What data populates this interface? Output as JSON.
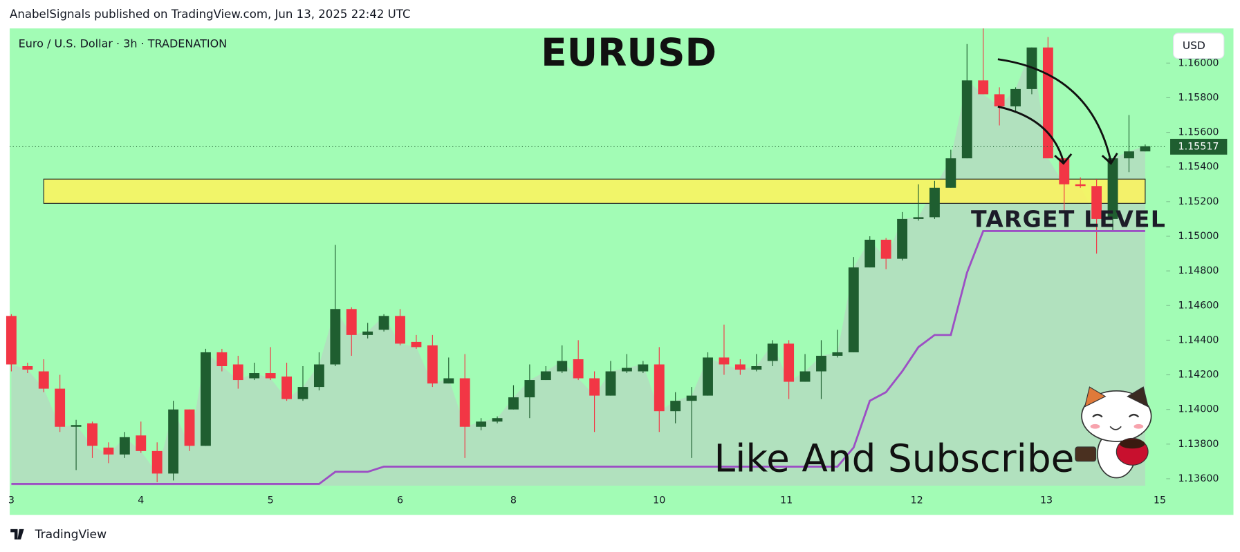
{
  "header": {
    "published": "AnabelSignals published on TradingView.com, Jun 13, 2025 22:42 UTC",
    "brand": "TradingView"
  },
  "chart_data": {
    "type": "candlestick",
    "symbol": "Euro / U.S. Dollar · 3h · TRADENATION",
    "title": "EURUSD",
    "currency": "USD",
    "annotations": [
      "TARGET LEVEL",
      "Like And Subscribe"
    ],
    "up_color": "#1f5e30",
    "down_color": "#f23645",
    "area_color": "#b4dcc0",
    "open": [
      1.1454,
      1.1425,
      1.1422,
      1.1412,
      1.139,
      1.1392,
      1.1378,
      1.1374,
      1.1385,
      1.1376,
      1.1363,
      1.14,
      1.1379,
      1.1433,
      1.1426,
      1.1418,
      1.1421,
      1.1419,
      1.1406,
      1.1413,
      1.1426,
      1.1458,
      1.1443,
      1.1446,
      1.1454,
      1.1439,
      1.1437,
      1.1415,
      1.1418,
      1.139,
      1.1393,
      1.14,
      1.1407,
      1.1417,
      1.1422,
      1.1429,
      1.1418,
      1.1408,
      1.1422,
      1.1422,
      1.1426,
      1.1399,
      1.1405,
      1.1408,
      1.143,
      1.1426,
      1.1423,
      1.1428,
      1.1438,
      1.1416,
      1.1422,
      1.1431,
      1.1433,
      1.1482,
      1.1498,
      1.1487,
      1.151,
      1.1511,
      1.1528,
      1.1545,
      1.159,
      1.1582,
      1.1575,
      1.1585,
      1.1609,
      1.1545,
      1.153,
      1.1529,
      1.151,
      1.1545,
      1.1549
    ],
    "high": [
      1.1455,
      1.1427,
      1.1429,
      1.142,
      1.1394,
      1.1393,
      1.1381,
      1.1387,
      1.1393,
      1.1381,
      1.1405,
      1.14,
      1.1435,
      1.1435,
      1.1431,
      1.1427,
      1.1436,
      1.1427,
      1.1425,
      1.1433,
      1.1495,
      1.1459,
      1.145,
      1.1455,
      1.1458,
      1.1443,
      1.1443,
      1.143,
      1.1432,
      1.1395,
      1.1396,
      1.1414,
      1.1426,
      1.1425,
      1.1437,
      1.144,
      1.1422,
      1.1428,
      1.1432,
      1.1428,
      1.1436,
      1.141,
      1.1413,
      1.1433,
      1.1449,
      1.1429,
      1.1432,
      1.144,
      1.144,
      1.1432,
      1.144,
      1.1446,
      1.1488,
      1.15,
      1.1499,
      1.1514,
      1.153,
      1.1532,
      1.155,
      1.1611,
      1.162,
      1.1586,
      1.1586,
      1.1609,
      1.1615,
      1.1545,
      1.1534,
      1.1533,
      1.1545,
      1.157,
      1.1553
    ],
    "low": [
      1.1422,
      1.1421,
      1.141,
      1.1387,
      1.1365,
      1.1372,
      1.1369,
      1.1372,
      1.1375,
      1.1358,
      1.1359,
      1.1376,
      1.1379,
      1.1422,
      1.1412,
      1.1417,
      1.1417,
      1.1405,
      1.1405,
      1.1411,
      1.1425,
      1.1431,
      1.1441,
      1.1445,
      1.1437,
      1.1435,
      1.1413,
      1.1415,
      1.1372,
      1.1388,
      1.1392,
      1.14,
      1.1395,
      1.1417,
      1.1421,
      1.1417,
      1.1387,
      1.1408,
      1.1421,
      1.1421,
      1.1387,
      1.1392,
      1.1372,
      1.1408,
      1.142,
      1.142,
      1.1422,
      1.1425,
      1.1406,
      1.1416,
      1.1406,
      1.143,
      1.1433,
      1.1482,
      1.1481,
      1.1486,
      1.1509,
      1.151,
      1.1528,
      1.1545,
      1.1582,
      1.1564,
      1.1572,
      1.1582,
      1.1545,
      1.1515,
      1.1528,
      1.149,
      1.1503,
      1.1537,
      1.1549
    ],
    "close": [
      1.1426,
      1.1423,
      1.1412,
      1.139,
      1.1391,
      1.1379,
      1.1374,
      1.1384,
      1.1376,
      1.1363,
      1.14,
      1.1379,
      1.1433,
      1.1425,
      1.1417,
      1.1421,
      1.1418,
      1.1406,
      1.1413,
      1.1426,
      1.1458,
      1.1443,
      1.1445,
      1.1454,
      1.1438,
      1.1436,
      1.1415,
      1.1418,
      1.139,
      1.1393,
      1.1395,
      1.1407,
      1.1417,
      1.1422,
      1.1428,
      1.1418,
      1.1408,
      1.1422,
      1.1424,
      1.1426,
      1.1399,
      1.1405,
      1.1408,
      1.143,
      1.1426,
      1.1423,
      1.1425,
      1.1438,
      1.1416,
      1.1422,
      1.1431,
      1.1433,
      1.1482,
      1.1498,
      1.1487,
      1.151,
      1.1511,
      1.1528,
      1.1545,
      1.159,
      1.1582,
      1.1575,
      1.1585,
      1.1609,
      1.1545,
      1.153,
      1.1529,
      1.151,
      1.1545,
      1.1549,
      1.1552
    ],
    "line": {
      "color": "#9c4fc4",
      "values": [
        1.1357,
        1.1357,
        1.1357,
        1.1357,
        1.1357,
        1.1357,
        1.1357,
        1.1357,
        1.1357,
        1.1357,
        1.1357,
        1.1357,
        1.1357,
        1.1357,
        1.1357,
        1.1357,
        1.1357,
        1.1357,
        1.1357,
        1.1357,
        1.1364,
        1.1364,
        1.1364,
        1.1367,
        1.1367,
        1.1367,
        1.1367,
        1.1367,
        1.1367,
        1.1367,
        1.1367,
        1.1367,
        1.1367,
        1.1367,
        1.1367,
        1.1367,
        1.1367,
        1.1367,
        1.1367,
        1.1367,
        1.1367,
        1.1367,
        1.1367,
        1.1367,
        1.1367,
        1.1367,
        1.1367,
        1.1367,
        1.1367,
        1.1367,
        1.1367,
        1.1367,
        1.1378,
        1.1405,
        1.141,
        1.1422,
        1.1436,
        1.1443,
        1.1443,
        1.1479,
        1.1503,
        1.1503,
        1.1503,
        1.1503,
        1.1503,
        1.1503,
        1.1503,
        1.1503,
        1.1503,
        1.1503,
        1.1503
      ]
    },
    "zone": {
      "low": 1.1519,
      "high": 1.1533,
      "start": 2,
      "end": 70,
      "color": "#fff35c"
    },
    "last_price": 1.15517,
    "xlim": [
      -0.1,
      71.3
    ],
    "ylim": [
      1.1356,
      1.162
    ],
    "yticks": [
      {
        "value": 1.136,
        "label": "1.13600"
      },
      {
        "value": 1.138,
        "label": "1.13800"
      },
      {
        "value": 1.14,
        "label": "1.14000"
      },
      {
        "value": 1.142,
        "label": "1.14200"
      },
      {
        "value": 1.144,
        "label": "1.14400"
      },
      {
        "value": 1.146,
        "label": "1.14600"
      },
      {
        "value": 1.148,
        "label": "1.14800"
      },
      {
        "value": 1.15,
        "label": "1.15000"
      },
      {
        "value": 1.152,
        "label": "1.15200"
      },
      {
        "value": 1.154,
        "label": "1.15400"
      },
      {
        "value": 1.156,
        "label": "1.15600"
      },
      {
        "value": 1.158,
        "label": "1.15800"
      },
      {
        "value": 1.16,
        "label": "1.16000"
      }
    ],
    "xticks": [
      {
        "value": 0,
        "label": "3"
      },
      {
        "value": 8,
        "label": "4"
      },
      {
        "value": 16,
        "label": "5"
      },
      {
        "value": 24,
        "label": "6"
      },
      {
        "value": 31,
        "label": "8"
      },
      {
        "value": 40,
        "label": "10"
      },
      {
        "value": 47.85,
        "label": "11"
      },
      {
        "value": 55.9,
        "label": "12"
      },
      {
        "value": 63.9,
        "label": "13"
      },
      {
        "value": 70.9,
        "label": "15"
      }
    ]
  }
}
